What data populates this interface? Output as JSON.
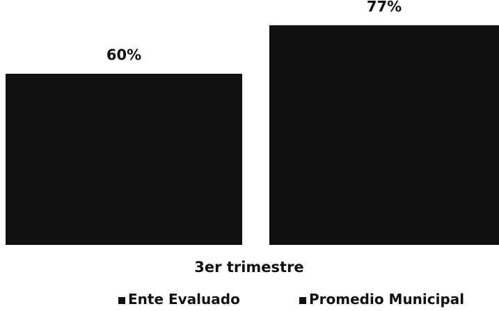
{
  "chart_data": {
    "type": "bar",
    "categories": [
      "3er trimestre"
    ],
    "series": [
      {
        "name": "Ente Evaluado",
        "values": [
          60
        ],
        "label": "60%",
        "color": "#111111"
      },
      {
        "name": "Promedio Municipal",
        "values": [
          77
        ],
        "label": "77%",
        "color": "#0f0f0f"
      }
    ],
    "xlabel": "3er trimestre",
    "ylim": [
      0,
      100
    ],
    "legend_position": "bottom",
    "grid": false
  }
}
